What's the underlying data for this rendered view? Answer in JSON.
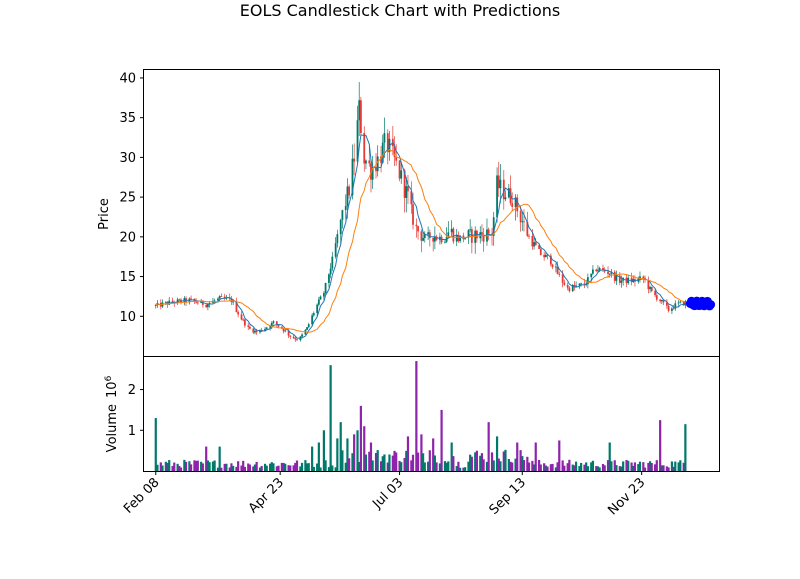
{
  "chart_data": {
    "type": "candlestick",
    "title": "EOLS Candlestick Chart with Predictions",
    "colors": {
      "up": "#00796b",
      "down": "#e53935",
      "ma_short": "#1f77b4",
      "ma_long": "#ff7f0e",
      "prediction": "#0000ff",
      "volume_up": "#00796b",
      "volume_down": "#8e24aa"
    },
    "price_panel": {
      "ylabel": "Price",
      "ylim": [
        5,
        41
      ],
      "yticks": [
        10,
        15,
        20,
        25,
        30,
        35,
        40
      ]
    },
    "volume_panel": {
      "ylabel": "Volume",
      "yexp_label": "10",
      "yexp_power": "6",
      "ylim": [
        0,
        2.8
      ],
      "yticks": [
        1,
        2
      ]
    },
    "x_axis": {
      "xlim": [
        -7,
        335
      ],
      "tick_labels": [
        {
          "label": "Feb 08",
          "day": 0
        },
        {
          "label": "Apr 23",
          "day": 74
        },
        {
          "label": "Jul 03",
          "day": 145
        },
        {
          "label": "Sep 13",
          "day": 218
        },
        {
          "label": "Nov 23",
          "day": 289
        }
      ]
    },
    "price_keypoints": [
      [
        0,
        11.3
      ],
      [
        10,
        11.8
      ],
      [
        20,
        12.0
      ],
      [
        30,
        11.5
      ],
      [
        38,
        12.2
      ],
      [
        45,
        12.0
      ],
      [
        50,
        10.0
      ],
      [
        55,
        8.5
      ],
      [
        60,
        8.0
      ],
      [
        65,
        8.5
      ],
      [
        70,
        9.2
      ],
      [
        75,
        8.5
      ],
      [
        80,
        7.5
      ],
      [
        85,
        7.0
      ],
      [
        90,
        8.5
      ],
      [
        95,
        11.0
      ],
      [
        100,
        13.0
      ],
      [
        105,
        17.0
      ],
      [
        110,
        22.0
      ],
      [
        115,
        26.0
      ],
      [
        118,
        30.0
      ],
      [
        121,
        36.0
      ],
      [
        124,
        30.0
      ],
      [
        128,
        28.5
      ],
      [
        133,
        30.0
      ],
      [
        137,
        32.0
      ],
      [
        140,
        30.5
      ],
      [
        145,
        28.0
      ],
      [
        150,
        25.0
      ],
      [
        152,
        23.0
      ],
      [
        155,
        21.0
      ],
      [
        160,
        19.8
      ],
      [
        165,
        20.3
      ],
      [
        170,
        19.8
      ],
      [
        175,
        20.8
      ],
      [
        180,
        19.8
      ],
      [
        190,
        20.2
      ],
      [
        200,
        20.5
      ],
      [
        203,
        26.5
      ],
      [
        208,
        25.5
      ],
      [
        212,
        25.0
      ],
      [
        218,
        22.0
      ],
      [
        222,
        20.0
      ],
      [
        228,
        18.0
      ],
      [
        235,
        17.0
      ],
      [
        240,
        15.0
      ],
      [
        245,
        13.5
      ],
      [
        255,
        14.0
      ],
      [
        262,
        16.0
      ],
      [
        270,
        15.5
      ],
      [
        275,
        14.5
      ],
      [
        285,
        14.5
      ],
      [
        290,
        14.8
      ],
      [
        295,
        13.0
      ],
      [
        300,
        12.0
      ],
      [
        305,
        10.8
      ],
      [
        310,
        11.5
      ],
      [
        315,
        11.7
      ]
    ],
    "candle_count": 225,
    "predictions": {
      "day_range": [
        318,
        330
      ],
      "price_range": [
        11.3,
        11.9
      ],
      "count": 20
    },
    "volume_spikes": [
      [
        0,
        1.3
      ],
      [
        2,
        0.35
      ],
      [
        30,
        0.6
      ],
      [
        38,
        0.6
      ],
      [
        93,
        0.6
      ],
      [
        97,
        0.7
      ],
      [
        100,
        1.0
      ],
      [
        102,
        1.35
      ],
      [
        104,
        2.6
      ],
      [
        108,
        0.8
      ],
      [
        110,
        1.2
      ],
      [
        112,
        1.15
      ],
      [
        114,
        0.8
      ],
      [
        118,
        0.9
      ],
      [
        120,
        1.0
      ],
      [
        122,
        1.6
      ],
      [
        124,
        1.1
      ],
      [
        128,
        0.7
      ],
      [
        140,
        0.5
      ],
      [
        150,
        0.85
      ],
      [
        155,
        2.7
      ],
      [
        158,
        0.9
      ],
      [
        165,
        0.8
      ],
      [
        170,
        1.5
      ],
      [
        176,
        0.7
      ],
      [
        198,
        1.2
      ],
      [
        203,
        0.85
      ],
      [
        215,
        0.7
      ],
      [
        220,
        1.0
      ],
      [
        226,
        0.7
      ],
      [
        240,
        0.75
      ],
      [
        258,
        0.7
      ],
      [
        270,
        0.7
      ],
      [
        300,
        1.25
      ],
      [
        315,
        1.15
      ],
      [
        318,
        0.8
      ],
      [
        320,
        0.85
      ]
    ]
  }
}
